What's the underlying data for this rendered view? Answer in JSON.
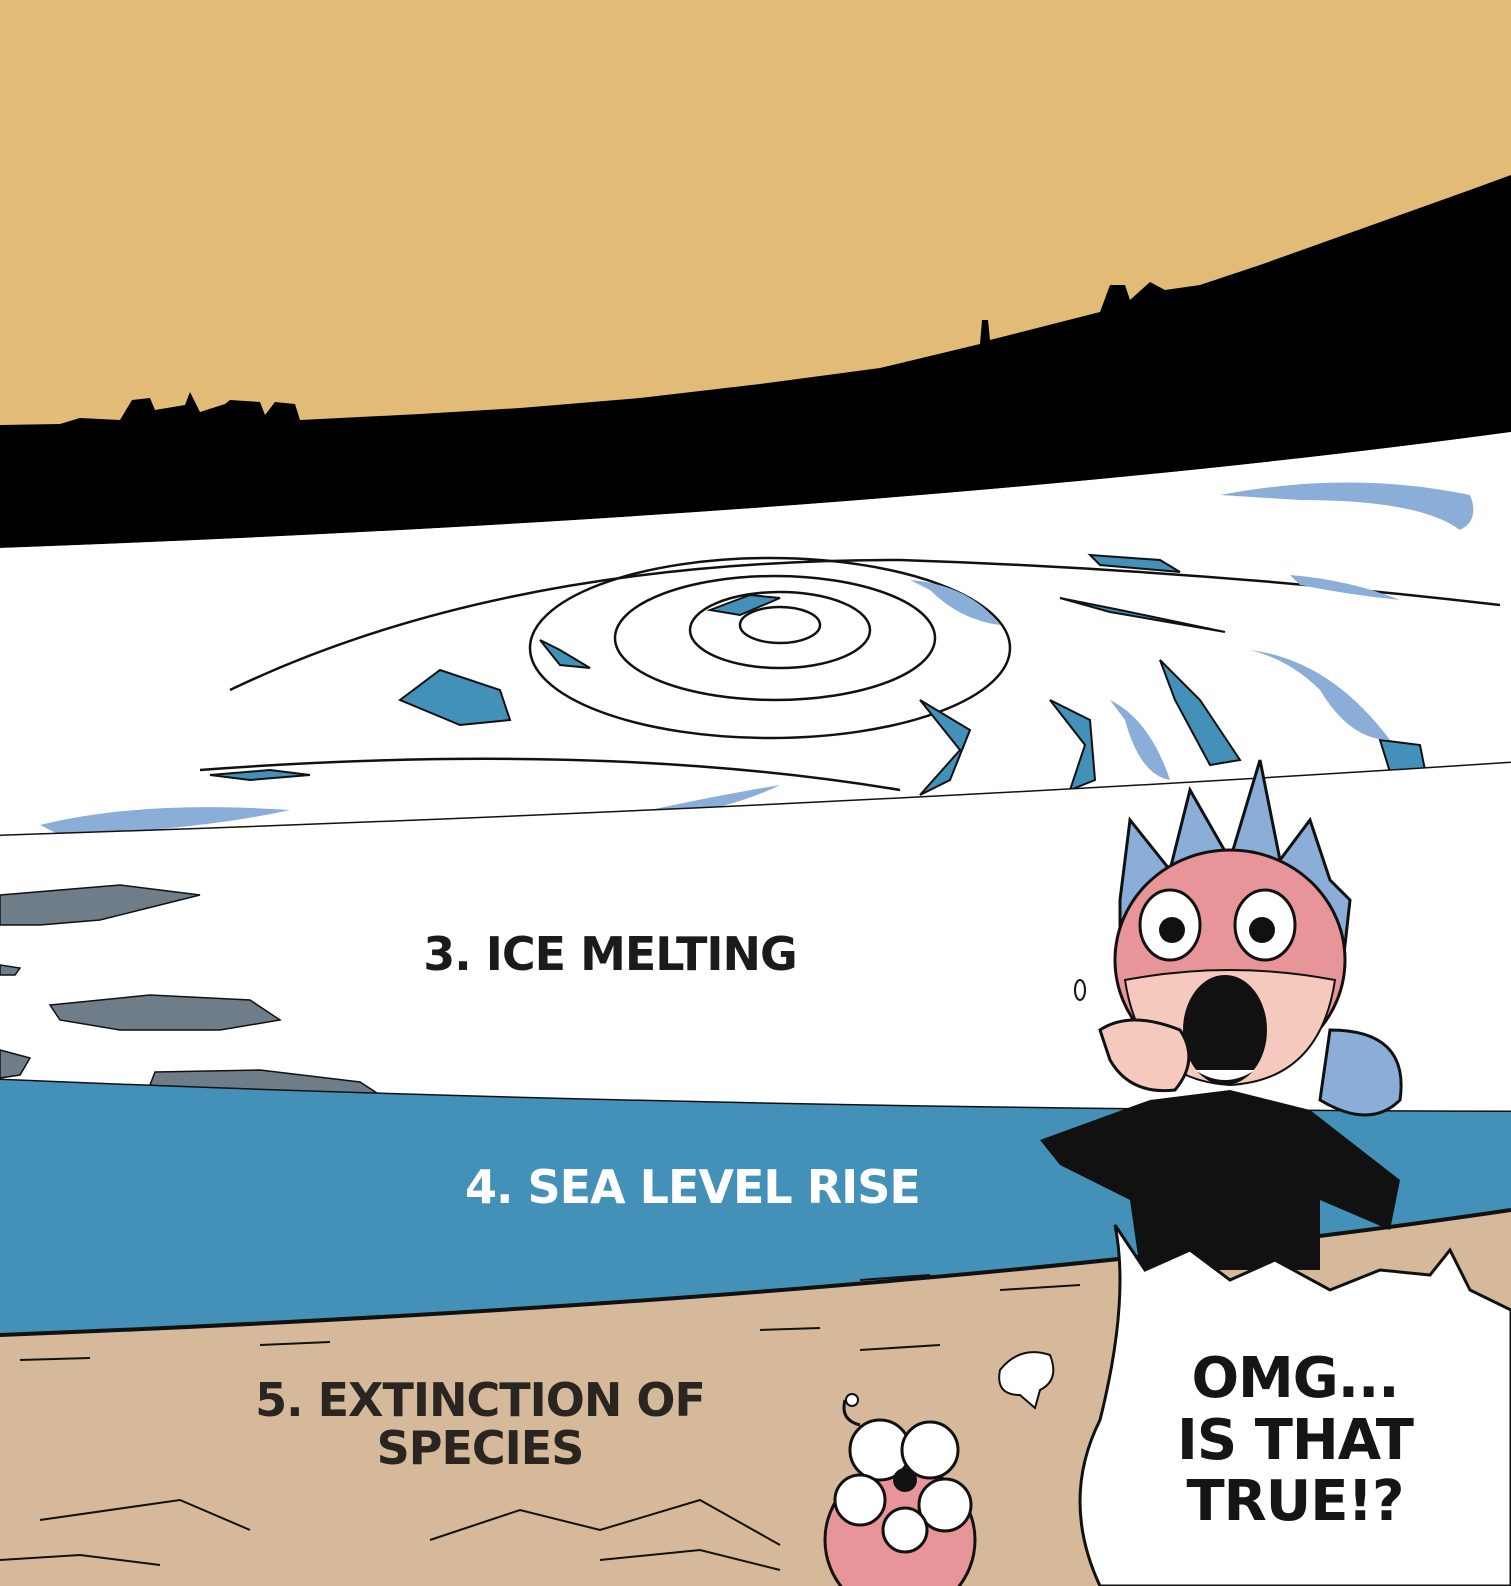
{
  "panels": {
    "sky_color": "#e2bc76",
    "cloud_blue": "#4390b8",
    "cloud_lightblue": "#8aaed8",
    "sea_color": "#4390b8",
    "sand_color": "#d6b99a",
    "ice_gray": "#6f7d88"
  },
  "captions": {
    "ice_melting": "3. ICE MELTING",
    "sea_level_rise": "4. SEA LEVEL RISE",
    "extinction_line1": "5. EXTINCTION OF",
    "extinction_line2": "SPECIES"
  },
  "speech_bubble": {
    "line1": "OMG...",
    "line2": "IS THAT",
    "line3": "TRUE!?"
  },
  "character": {
    "hair_color": "#8aaed8",
    "face_color": "#e8959a",
    "outfit_color": "#111111"
  }
}
